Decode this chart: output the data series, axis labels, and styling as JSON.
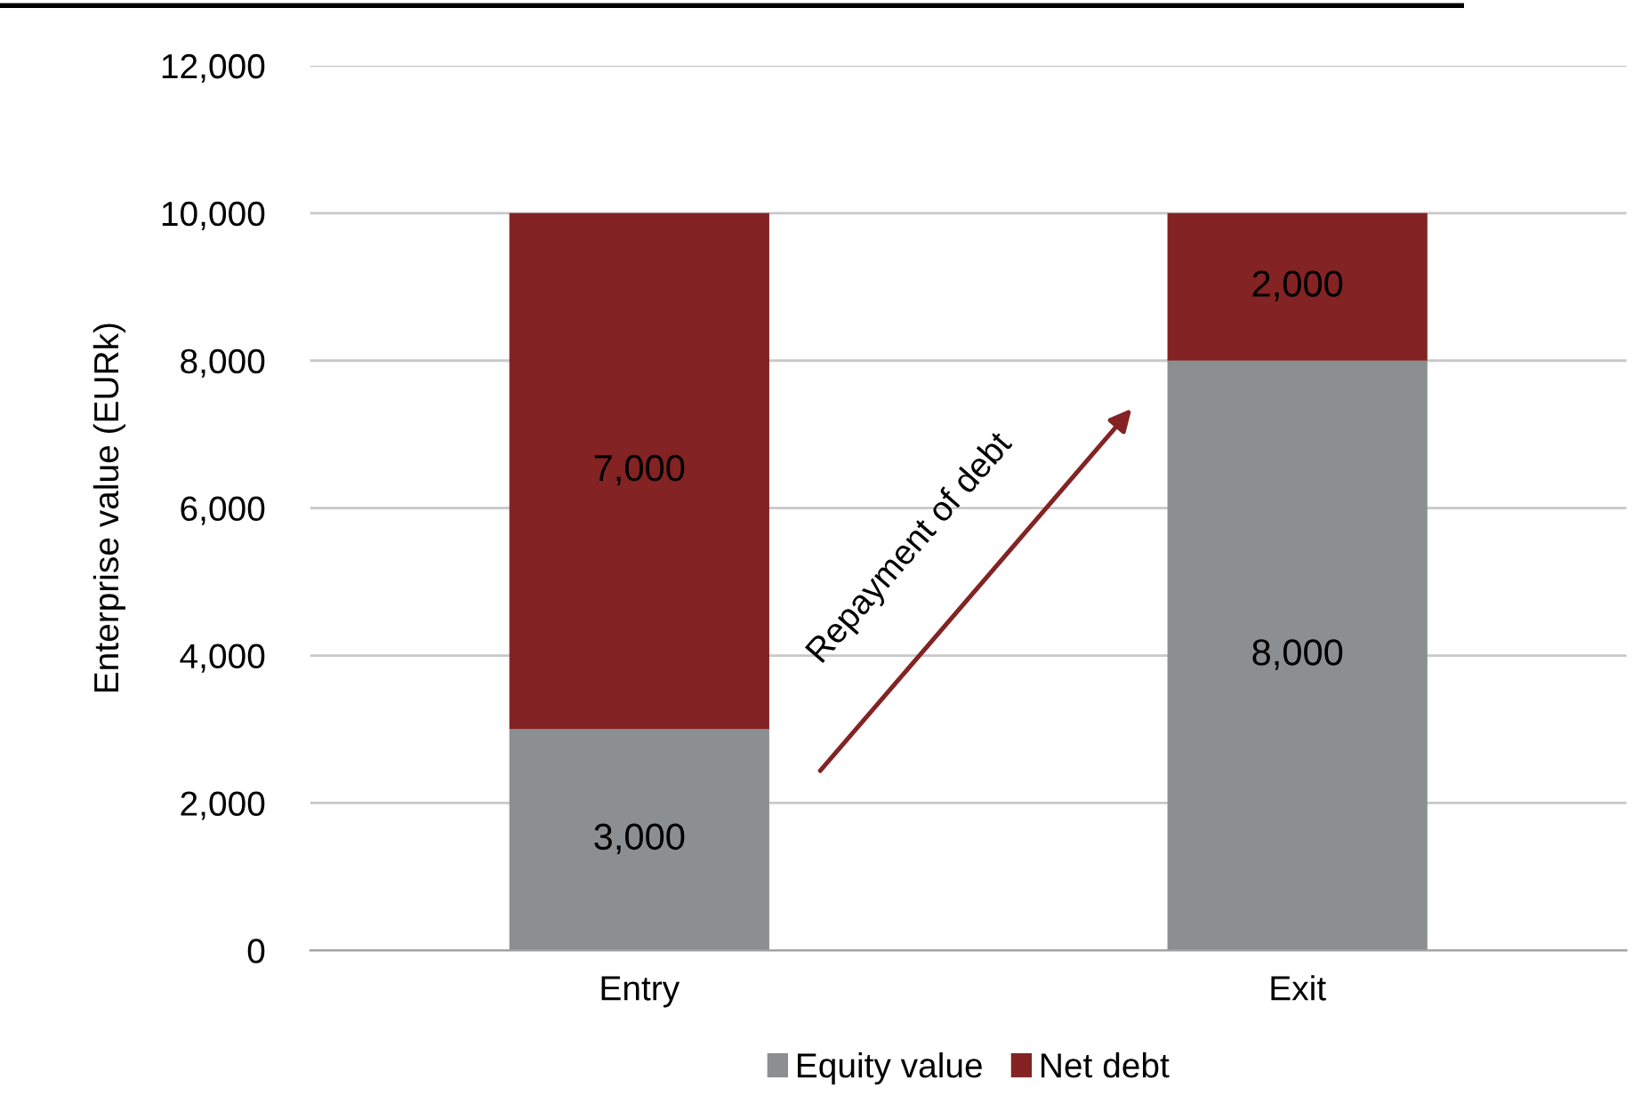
{
  "chart_data": {
    "type": "bar",
    "stacked": true,
    "ylabel": "Enterprise value (EURk)",
    "categories": [
      "Entry",
      "Exit"
    ],
    "series": [
      {
        "name": "Equity value",
        "color": "#8c8f92",
        "values": [
          3000,
          8000
        ],
        "value_labels": [
          "3,000",
          "8,000"
        ]
      },
      {
        "name": "Net debt",
        "color": "#832323",
        "values": [
          7000,
          2000
        ],
        "value_labels": [
          "7,000",
          "2,000"
        ]
      }
    ],
    "ylim": [
      0,
      12000
    ],
    "yticks": [
      {
        "value": 0,
        "label": "0"
      },
      {
        "value": 2000,
        "label": "2,000"
      },
      {
        "value": 4000,
        "label": "4,000"
      },
      {
        "value": 6000,
        "label": "6,000"
      },
      {
        "value": 8000,
        "label": "8,000"
      },
      {
        "value": 10000,
        "label": "10,000"
      },
      {
        "value": 12000,
        "label": "12,000"
      }
    ],
    "grid": "y",
    "legend": "bottom",
    "annotations": [
      "Repayment of debt"
    ]
  }
}
